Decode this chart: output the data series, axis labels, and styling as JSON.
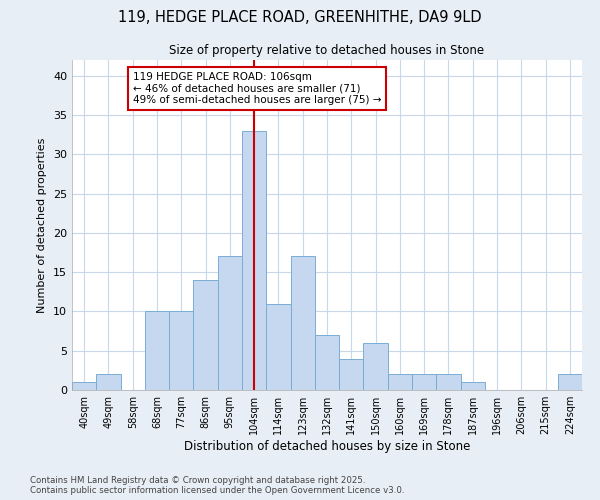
{
  "title1": "119, HEDGE PLACE ROAD, GREENHITHE, DA9 9LD",
  "title2": "Size of property relative to detached houses in Stone",
  "xlabel": "Distribution of detached houses by size in Stone",
  "ylabel": "Number of detached properties",
  "categories": [
    "40sqm",
    "49sqm",
    "58sqm",
    "68sqm",
    "77sqm",
    "86sqm",
    "95sqm",
    "104sqm",
    "114sqm",
    "123sqm",
    "132sqm",
    "141sqm",
    "150sqm",
    "160sqm",
    "169sqm",
    "178sqm",
    "187sqm",
    "196sqm",
    "206sqm",
    "215sqm",
    "224sqm"
  ],
  "values": [
    1,
    2,
    0,
    10,
    10,
    14,
    17,
    33,
    11,
    17,
    7,
    4,
    6,
    2,
    2,
    2,
    1,
    0,
    0,
    0,
    2
  ],
  "bar_color": "#c5d8f0",
  "bar_edge_color": "#7aadd4",
  "highlight_index": 7,
  "vline_x": 7,
  "vline_color": "#cc0000",
  "annotation_title": "119 HEDGE PLACE ROAD: 106sqm",
  "annotation_line1": "← 46% of detached houses are smaller (71)",
  "annotation_line2": "49% of semi-detached houses are larger (75) →",
  "annotation_box_color": "#ffffff",
  "annotation_box_edge": "#cc0000",
  "background_color": "#e8eef5",
  "plot_bg_color": "#ffffff",
  "grid_color": "#c8d8e8",
  "ylim": [
    0,
    42
  ],
  "yticks": [
    0,
    5,
    10,
    15,
    20,
    25,
    30,
    35,
    40
  ],
  "footer1": "Contains HM Land Registry data © Crown copyright and database right 2025.",
  "footer2": "Contains public sector information licensed under the Open Government Licence v3.0."
}
